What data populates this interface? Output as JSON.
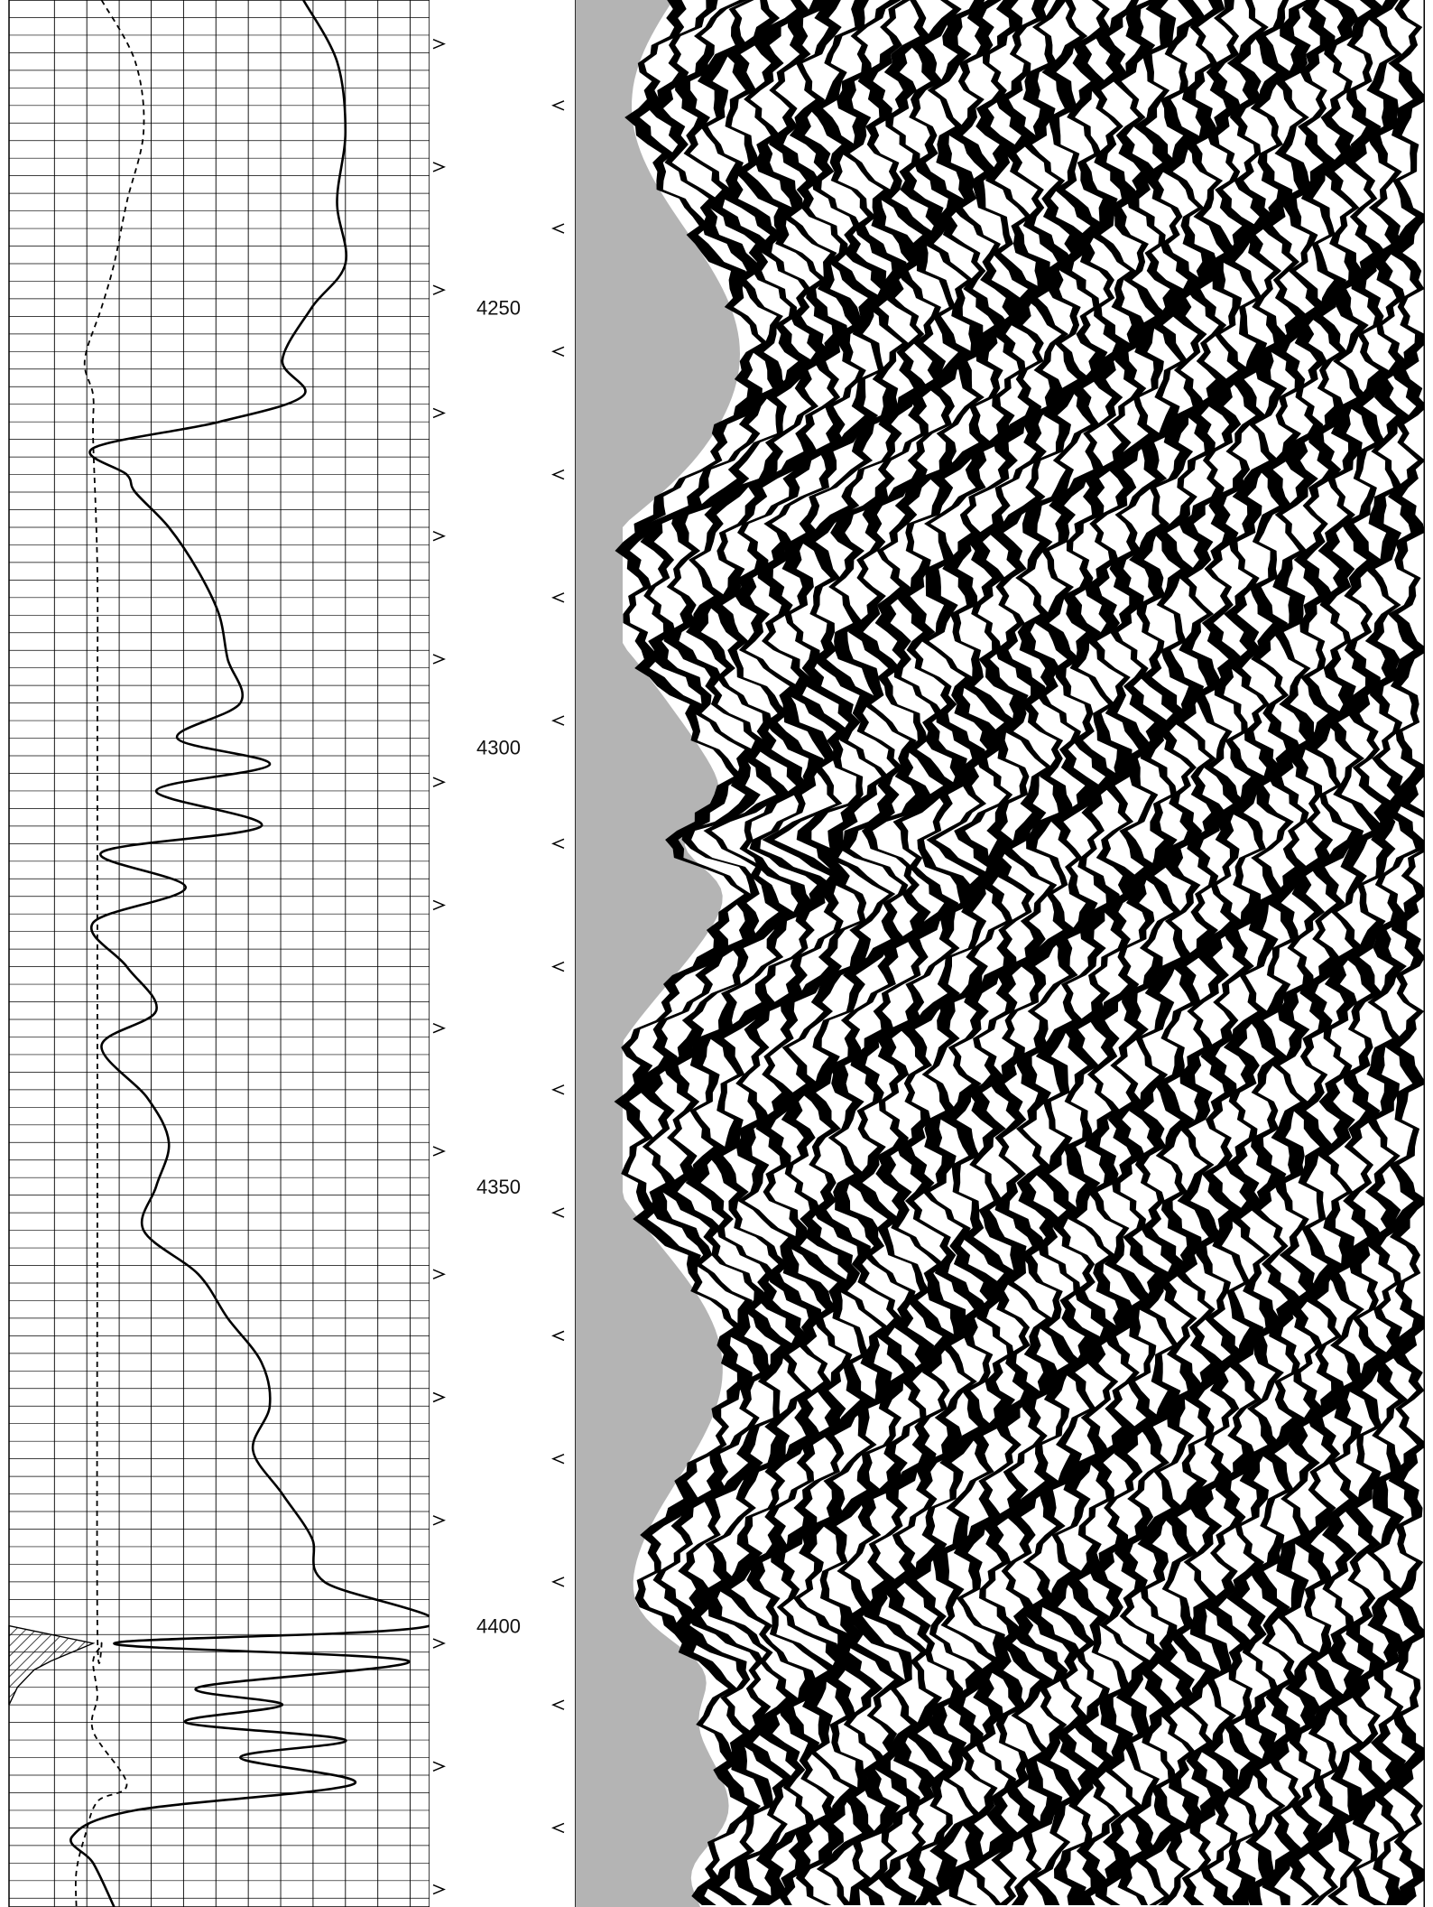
{
  "chart_data": {
    "type": "line",
    "depth_axis": {
      "range": [
        4215,
        4432
      ],
      "ticks": [
        4250,
        4300,
        4350,
        4400
      ],
      "tick_labels": [
        "4250",
        "4300",
        "4350",
        "4400"
      ]
    },
    "series": [
      {
        "style": "solid",
        "depth": [
          4215,
          4222,
          4230,
          4238,
          4245,
          4250,
          4256,
          4260,
          4263,
          4266,
          4269,
          4271,
          4275,
          4280,
          4285,
          4290,
          4295,
          4299,
          4302,
          4305,
          4309,
          4312,
          4316,
          4320,
          4325,
          4330,
          4334,
          4340,
          4345,
          4350,
          4355,
          4360,
          4365,
          4370,
          4375,
          4380,
          4385,
          4390,
          4395,
          4400,
          4402,
          4404,
          4407,
          4409,
          4411,
          4413,
          4415,
          4418,
          4421,
          4424,
          4427,
          4432
        ],
        "value": [
          0.7,
          0.78,
          0.8,
          0.78,
          0.8,
          0.72,
          0.65,
          0.7,
          0.5,
          0.2,
          0.28,
          0.3,
          0.38,
          0.45,
          0.5,
          0.52,
          0.55,
          0.4,
          0.62,
          0.35,
          0.6,
          0.22,
          0.42,
          0.2,
          0.28,
          0.35,
          0.22,
          0.33,
          0.38,
          0.35,
          0.32,
          0.45,
          0.52,
          0.6,
          0.62,
          0.58,
          0.65,
          0.72,
          0.75,
          1.0,
          0.25,
          0.95,
          0.45,
          0.65,
          0.42,
          0.8,
          0.55,
          0.82,
          0.3,
          0.15,
          0.2,
          0.25
        ]
      },
      {
        "style": "dashed",
        "depth": [
          4215,
          4222,
          4230,
          4238,
          4245,
          4250,
          4256,
          4260,
          4265,
          4280,
          4300,
          4350,
          4400,
          4402,
          4404,
          4408,
          4412,
          4418,
          4420,
          4424,
          4428,
          4432
        ],
        "value": [
          0.22,
          0.3,
          0.32,
          0.28,
          0.25,
          0.22,
          0.18,
          0.2,
          0.2,
          0.21,
          0.21,
          0.21,
          0.21,
          0.22,
          0.2,
          0.21,
          0.2,
          0.28,
          0.21,
          0.18,
          0.16,
          0.16
        ]
      },
      {
        "style": "hatched",
        "depth": [
          4400,
          4402,
          4404,
          4405,
          4407,
          4409
        ],
        "value": [
          0.0,
          0.2,
          0.1,
          0.06,
          0.02,
          0.0
        ]
      }
    ],
    "image_track": {
      "type": "heatmap",
      "colors": [
        "#000000",
        "#ffffff",
        "#b4b4b4"
      ]
    },
    "grid": true
  }
}
